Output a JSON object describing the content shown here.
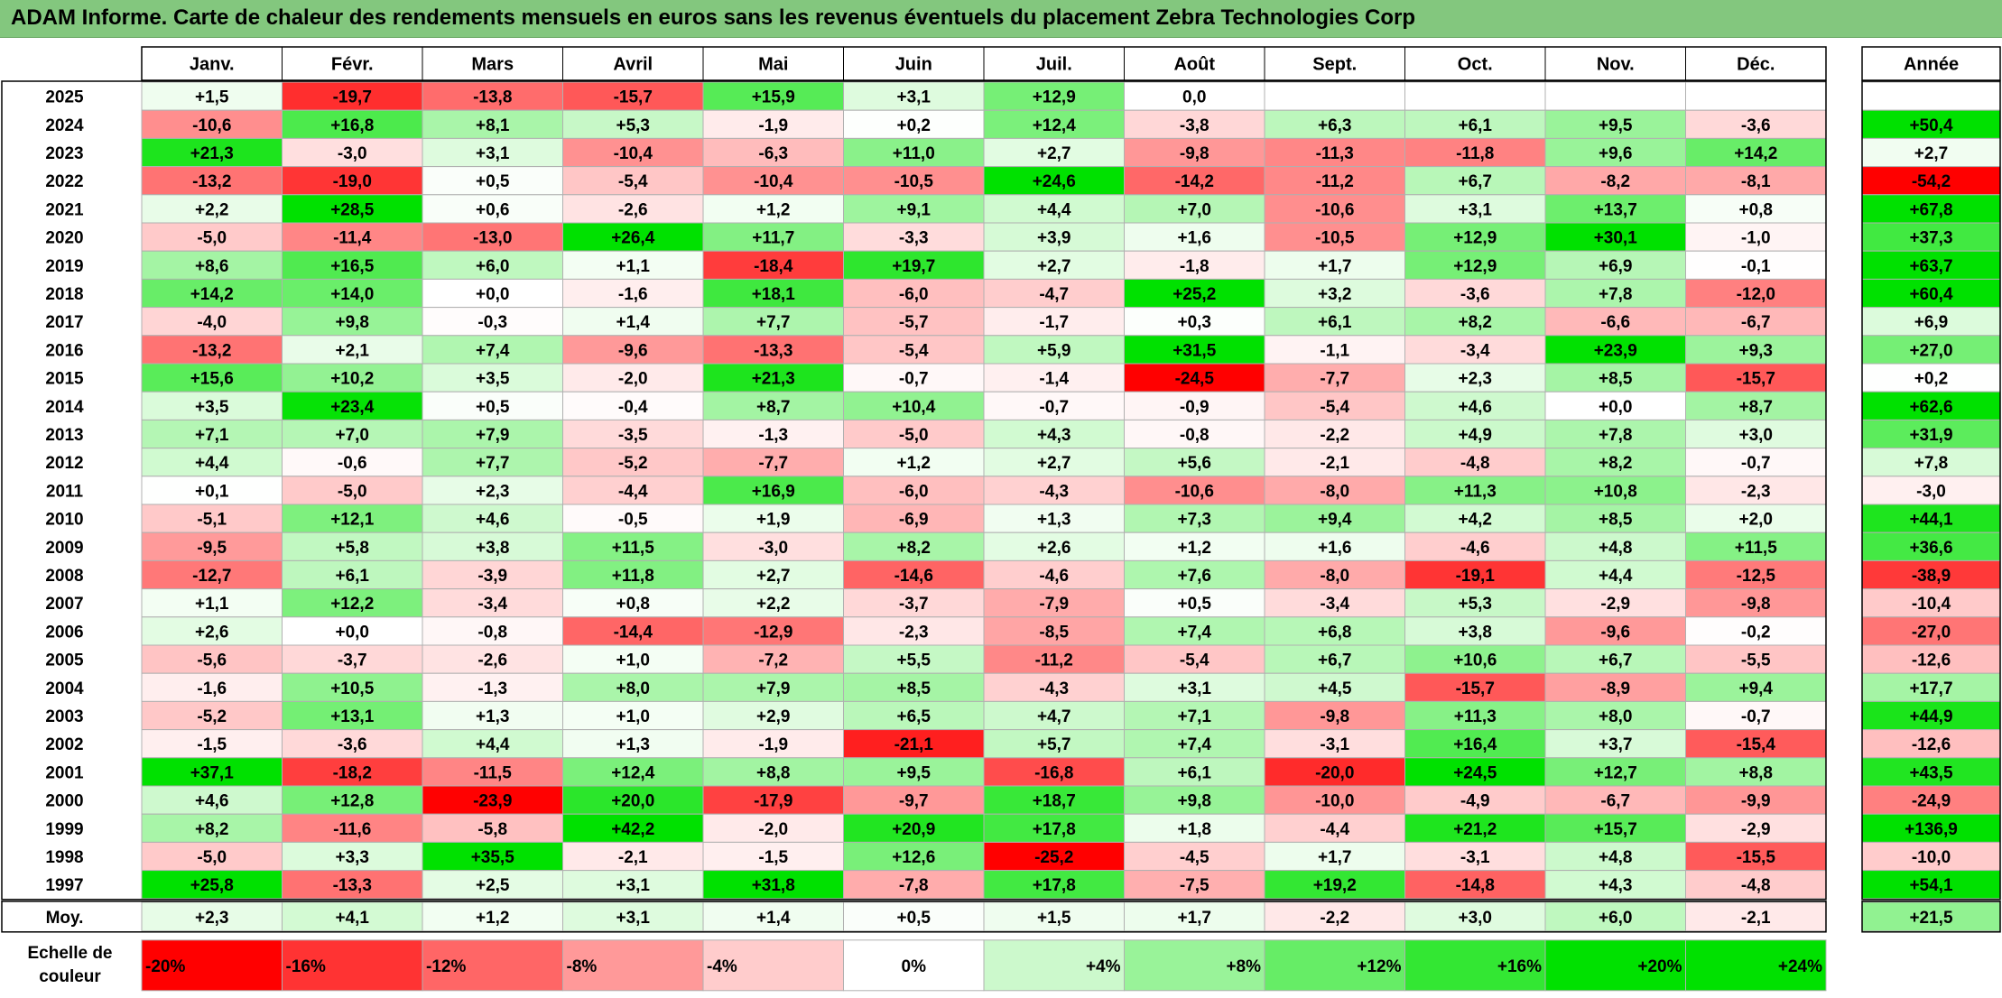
{
  "title": "ADAM Informe. Carte de chaleur des rendements mensuels en euros sans les revenus éventuels du placement Zebra Technologies Corp",
  "chart_data": {
    "type": "heatmap",
    "title": "ADAM Informe. Carte de chaleur des rendements mensuels en euros sans les revenus éventuels du placement Zebra Technologies Corp",
    "columns": [
      "Janv.",
      "Févr.",
      "Mars",
      "Avril",
      "Mai",
      "Juin",
      "Juil.",
      "Août",
      "Sept.",
      "Oct.",
      "Nov.",
      "Déc."
    ],
    "year_column_label": "Année",
    "average_row_label": "Moy.",
    "rows": [
      {
        "year": "2025",
        "values": [
          "+1,5",
          "-19,7",
          "-13,8",
          "-15,7",
          "+15,9",
          "+3,1",
          "+12,9",
          "0,0",
          "",
          "",
          "",
          ""
        ],
        "annual": ""
      },
      {
        "year": "2024",
        "values": [
          "-10,6",
          "+16,8",
          "+8,1",
          "+5,3",
          "-1,9",
          "+0,2",
          "+12,4",
          "-3,8",
          "+6,3",
          "+6,1",
          "+9,5",
          "-3,6"
        ],
        "annual": "+50,4"
      },
      {
        "year": "2023",
        "values": [
          "+21,3",
          "-3,0",
          "+3,1",
          "-10,4",
          "-6,3",
          "+11,0",
          "+2,7",
          "-9,8",
          "-11,3",
          "-11,8",
          "+9,6",
          "+14,2"
        ],
        "annual": "+2,7"
      },
      {
        "year": "2022",
        "values": [
          "-13,2",
          "-19,0",
          "+0,5",
          "-5,4",
          "-10,4",
          "-10,5",
          "+24,6",
          "-14,2",
          "-11,2",
          "+6,7",
          "-8,2",
          "-8,1"
        ],
        "annual": "-54,2"
      },
      {
        "year": "2021",
        "values": [
          "+2,2",
          "+28,5",
          "+0,6",
          "-2,6",
          "+1,2",
          "+9,1",
          "+4,4",
          "+7,0",
          "-10,6",
          "+3,1",
          "+13,7",
          "+0,8"
        ],
        "annual": "+67,8"
      },
      {
        "year": "2020",
        "values": [
          "-5,0",
          "-11,4",
          "-13,0",
          "+26,4",
          "+11,7",
          "-3,3",
          "+3,9",
          "+1,6",
          "-10,5",
          "+12,9",
          "+30,1",
          "-1,0"
        ],
        "annual": "+37,3"
      },
      {
        "year": "2019",
        "values": [
          "+8,6",
          "+16,5",
          "+6,0",
          "+1,1",
          "-18,4",
          "+19,7",
          "+2,7",
          "-1,8",
          "+1,7",
          "+12,9",
          "+6,9",
          "-0,1"
        ],
        "annual": "+63,7"
      },
      {
        "year": "2018",
        "values": [
          "+14,2",
          "+14,0",
          "+0,0",
          "-1,6",
          "+18,1",
          "-6,0",
          "-4,7",
          "+25,2",
          "+3,2",
          "-3,6",
          "+7,8",
          "-12,0"
        ],
        "annual": "+60,4"
      },
      {
        "year": "2017",
        "values": [
          "-4,0",
          "+9,8",
          "-0,3",
          "+1,4",
          "+7,7",
          "-5,7",
          "-1,7",
          "+0,3",
          "+6,1",
          "+8,2",
          "-6,6",
          "-6,7"
        ],
        "annual": "+6,9"
      },
      {
        "year": "2016",
        "values": [
          "-13,2",
          "+2,1",
          "+7,4",
          "-9,6",
          "-13,3",
          "-5,4",
          "+5,9",
          "+31,5",
          "-1,1",
          "-3,4",
          "+23,9",
          "+9,3"
        ],
        "annual": "+27,0"
      },
      {
        "year": "2015",
        "values": [
          "+15,6",
          "+10,2",
          "+3,5",
          "-2,0",
          "+21,3",
          "-0,7",
          "-1,4",
          "-24,5",
          "-7,7",
          "+2,3",
          "+8,5",
          "-15,7"
        ],
        "annual": "+0,2"
      },
      {
        "year": "2014",
        "values": [
          "+3,5",
          "+23,4",
          "+0,5",
          "-0,4",
          "+8,7",
          "+10,4",
          "-0,7",
          "-0,9",
          "-5,4",
          "+4,6",
          "+0,0",
          "+8,7"
        ],
        "annual": "+62,6"
      },
      {
        "year": "2013",
        "values": [
          "+7,1",
          "+7,0",
          "+7,9",
          "-3,5",
          "-1,3",
          "-5,0",
          "+4,3",
          "-0,8",
          "-2,2",
          "+4,9",
          "+7,8",
          "+3,0"
        ],
        "annual": "+31,9"
      },
      {
        "year": "2012",
        "values": [
          "+4,4",
          "-0,6",
          "+7,7",
          "-5,2",
          "-7,7",
          "+1,2",
          "+2,7",
          "+5,6",
          "-2,1",
          "-4,8",
          "+8,2",
          "-0,7"
        ],
        "annual": "+7,8"
      },
      {
        "year": "2011",
        "values": [
          "+0,1",
          "-5,0",
          "+2,3",
          "-4,4",
          "+16,9",
          "-6,0",
          "-4,3",
          "-10,6",
          "-8,0",
          "+11,3",
          "+10,8",
          "-2,3"
        ],
        "annual": "-3,0"
      },
      {
        "year": "2010",
        "values": [
          "-5,1",
          "+12,1",
          "+4,6",
          "-0,5",
          "+1,9",
          "-6,9",
          "+1,3",
          "+7,3",
          "+9,4",
          "+4,2",
          "+8,5",
          "+2,0"
        ],
        "annual": "+44,1"
      },
      {
        "year": "2009",
        "values": [
          "-9,5",
          "+5,8",
          "+3,8",
          "+11,5",
          "-3,0",
          "+8,2",
          "+2,6",
          "+1,2",
          "+1,6",
          "-4,6",
          "+4,8",
          "+11,5"
        ],
        "annual": "+36,6"
      },
      {
        "year": "2008",
        "values": [
          "-12,7",
          "+6,1",
          "-3,9",
          "+11,8",
          "+2,7",
          "-14,6",
          "-4,6",
          "+7,6",
          "-8,0",
          "-19,1",
          "+4,4",
          "-12,5"
        ],
        "annual": "-38,9"
      },
      {
        "year": "2007",
        "values": [
          "+1,1",
          "+12,2",
          "-3,4",
          "+0,8",
          "+2,2",
          "-3,7",
          "-7,9",
          "+0,5",
          "-3,4",
          "+5,3",
          "-2,9",
          "-9,8"
        ],
        "annual": "-10,4"
      },
      {
        "year": "2006",
        "values": [
          "+2,6",
          "+0,0",
          "-0,8",
          "-14,4",
          "-12,9",
          "-2,3",
          "-8,5",
          "+7,4",
          "+6,8",
          "+3,8",
          "-9,6",
          "-0,2"
        ],
        "annual": "-27,0"
      },
      {
        "year": "2005",
        "values": [
          "-5,6",
          "-3,7",
          "-2,6",
          "+1,0",
          "-7,2",
          "+5,5",
          "-11,2",
          "-5,4",
          "+6,7",
          "+10,6",
          "+6,7",
          "-5,5"
        ],
        "annual": "-12,6"
      },
      {
        "year": "2004",
        "values": [
          "-1,6",
          "+10,5",
          "-1,3",
          "+8,0",
          "+7,9",
          "+8,5",
          "-4,3",
          "+3,1",
          "+4,5",
          "-15,7",
          "-8,9",
          "+9,4"
        ],
        "annual": "+17,7"
      },
      {
        "year": "2003",
        "values": [
          "-5,2",
          "+13,1",
          "+1,3",
          "+1,0",
          "+2,9",
          "+6,5",
          "+4,7",
          "+7,1",
          "-9,8",
          "+11,3",
          "+8,0",
          "-0,7"
        ],
        "annual": "+44,9"
      },
      {
        "year": "2002",
        "values": [
          "-1,5",
          "-3,6",
          "+4,4",
          "+1,3",
          "-1,9",
          "-21,1",
          "+5,7",
          "+7,4",
          "-3,1",
          "+16,4",
          "+3,7",
          "-15,4"
        ],
        "annual": "-12,6"
      },
      {
        "year": "2001",
        "values": [
          "+37,1",
          "-18,2",
          "-11,5",
          "+12,4",
          "+8,8",
          "+9,5",
          "-16,8",
          "+6,1",
          "-20,0",
          "+24,5",
          "+12,7",
          "+8,8"
        ],
        "annual": "+43,5"
      },
      {
        "year": "2000",
        "values": [
          "+4,6",
          "+12,8",
          "-23,9",
          "+20,0",
          "-17,9",
          "-9,7",
          "+18,7",
          "+9,8",
          "-10,0",
          "-4,9",
          "-6,7",
          "-9,9"
        ],
        "annual": "-24,9"
      },
      {
        "year": "1999",
        "values": [
          "+8,2",
          "-11,6",
          "-5,8",
          "+42,2",
          "-2,0",
          "+20,9",
          "+17,8",
          "+1,8",
          "-4,4",
          "+21,2",
          "+15,7",
          "-2,9"
        ],
        "annual": "+136,9"
      },
      {
        "year": "1998",
        "values": [
          "-5,0",
          "+3,3",
          "+35,5",
          "-2,1",
          "-1,5",
          "+12,6",
          "-25,2",
          "-4,5",
          "+1,7",
          "-3,1",
          "+4,8",
          "-15,5"
        ],
        "annual": "-10,0"
      },
      {
        "year": "1997",
        "values": [
          "+25,8",
          "-13,3",
          "+2,5",
          "+3,1",
          "+31,8",
          "-7,8",
          "+17,8",
          "-7,5",
          "+19,2",
          "-14,8",
          "+4,3",
          "-4,8"
        ],
        "annual": "+54,1"
      }
    ],
    "averages": [
      "+2,3",
      "+4,1",
      "+1,2",
      "+3,1",
      "+1,4",
      "+0,5",
      "+1,5",
      "+1,7",
      "-2,2",
      "+3,0",
      "+6,0",
      "-2,1"
    ],
    "average_annual": "+21,5",
    "scale_label_line1": "Echelle de",
    "scale_label_line2": "couleur",
    "scale": [
      "-20%",
      "-16%",
      "-12%",
      "-8%",
      "-4%",
      "0%",
      "+4%",
      "+8%",
      "+12%",
      "+16%",
      "+20%",
      "+24%"
    ],
    "scale_values": [
      -20,
      -16,
      -12,
      -8,
      -4,
      0,
      4,
      8,
      12,
      16,
      20,
      24
    ],
    "colors": {
      "negative_max": "#ff0000",
      "zero": "#ffffff",
      "positive_max": "#00e000",
      "title_bar": "#83c77e"
    }
  }
}
